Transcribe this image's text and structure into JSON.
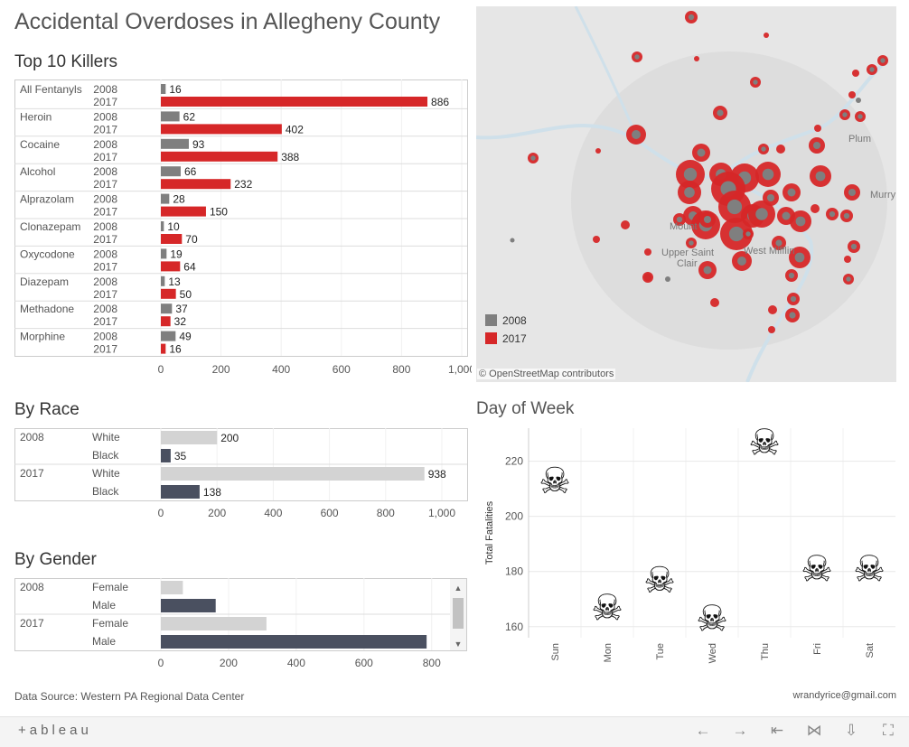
{
  "title": "Accidental Overdoses in Allegheny County",
  "colors": {
    "y2008": "#7f7f7f",
    "y2017": "#d62728",
    "light": "#d3d3d3",
    "dark": "#4a5060"
  },
  "top10": {
    "title": "Top 10 Killers",
    "chart_data": {
      "type": "bar",
      "categories": [
        "All Fentanyls",
        "Heroin",
        "Cocaine",
        "Alcohol",
        "Alprazolam",
        "Clonazepam",
        "Oxycodone",
        "Diazepam",
        "Methadone",
        "Morphine"
      ],
      "series": [
        {
          "name": "2008",
          "values": [
            16,
            62,
            93,
            66,
            28,
            10,
            19,
            13,
            37,
            49
          ]
        },
        {
          "name": "2017",
          "values": [
            886,
            402,
            388,
            232,
            150,
            70,
            64,
            50,
            32,
            16
          ]
        }
      ],
      "xlim": [
        0,
        1000
      ],
      "ticks": [
        "0",
        "200",
        "400",
        "600",
        "800",
        "1,000"
      ],
      "tick_values": [
        0,
        200,
        400,
        600,
        800,
        1000
      ]
    }
  },
  "race": {
    "title": "By Race",
    "chart_data": {
      "type": "bar",
      "groups": [
        {
          "year": "2008",
          "rows": [
            {
              "label": "White",
              "value": 200
            },
            {
              "label": "Black",
              "value": 35
            }
          ]
        },
        {
          "year": "2017",
          "rows": [
            {
              "label": "White",
              "value": 938
            },
            {
              "label": "Black",
              "value": 138
            }
          ]
        }
      ],
      "xlim": [
        0,
        1000
      ],
      "ticks": [
        "0",
        "200",
        "400",
        "600",
        "800",
        "1,000"
      ],
      "tick_values": [
        0,
        200,
        400,
        600,
        800,
        1000
      ]
    }
  },
  "gender": {
    "title": "By Gender",
    "chart_data": {
      "type": "bar",
      "groups": [
        {
          "year": "2008",
          "rows": [
            {
              "label": "Female",
              "value": 65
            },
            {
              "label": "Male",
              "value": 162
            }
          ]
        },
        {
          "year": "2017",
          "rows": [
            {
              "label": "Female",
              "value": 312
            },
            {
              "label": "Male",
              "value": 785
            }
          ]
        }
      ],
      "xlim": [
        0,
        830
      ],
      "ticks": [
        "0",
        "200",
        "400",
        "600",
        "800"
      ],
      "tick_values": [
        0,
        200,
        400,
        600,
        800
      ]
    }
  },
  "map": {
    "legend": [
      "2008",
      "2017"
    ],
    "labels": [
      "Plum",
      "Murry",
      "Mount",
      "Upper Saint",
      "Clair",
      "West Mifflin"
    ],
    "attribution": "© OpenStreetMap contributors"
  },
  "dow": {
    "title": "Day of Week",
    "chart_data": {
      "type": "scatter",
      "categories": [
        "Sun",
        "Mon",
        "Tue",
        "Wed",
        "Thu",
        "Fri",
        "Sat"
      ],
      "values": [
        213,
        167,
        177,
        163,
        227,
        181,
        181
      ],
      "ylabel": "Total Fatalities",
      "ylim": [
        156,
        232
      ],
      "ticks": [
        160,
        180,
        200,
        220
      ],
      "marker": "☠"
    }
  },
  "footer": {
    "source": "Data Source: Western  PA Regional Data Center",
    "email": "wrandyrice@gmail.com"
  },
  "toolbar": {
    "logo": "+ableau",
    "icons": [
      "←",
      "→",
      "⇤",
      "⋈",
      "⇩",
      "⛶"
    ]
  }
}
